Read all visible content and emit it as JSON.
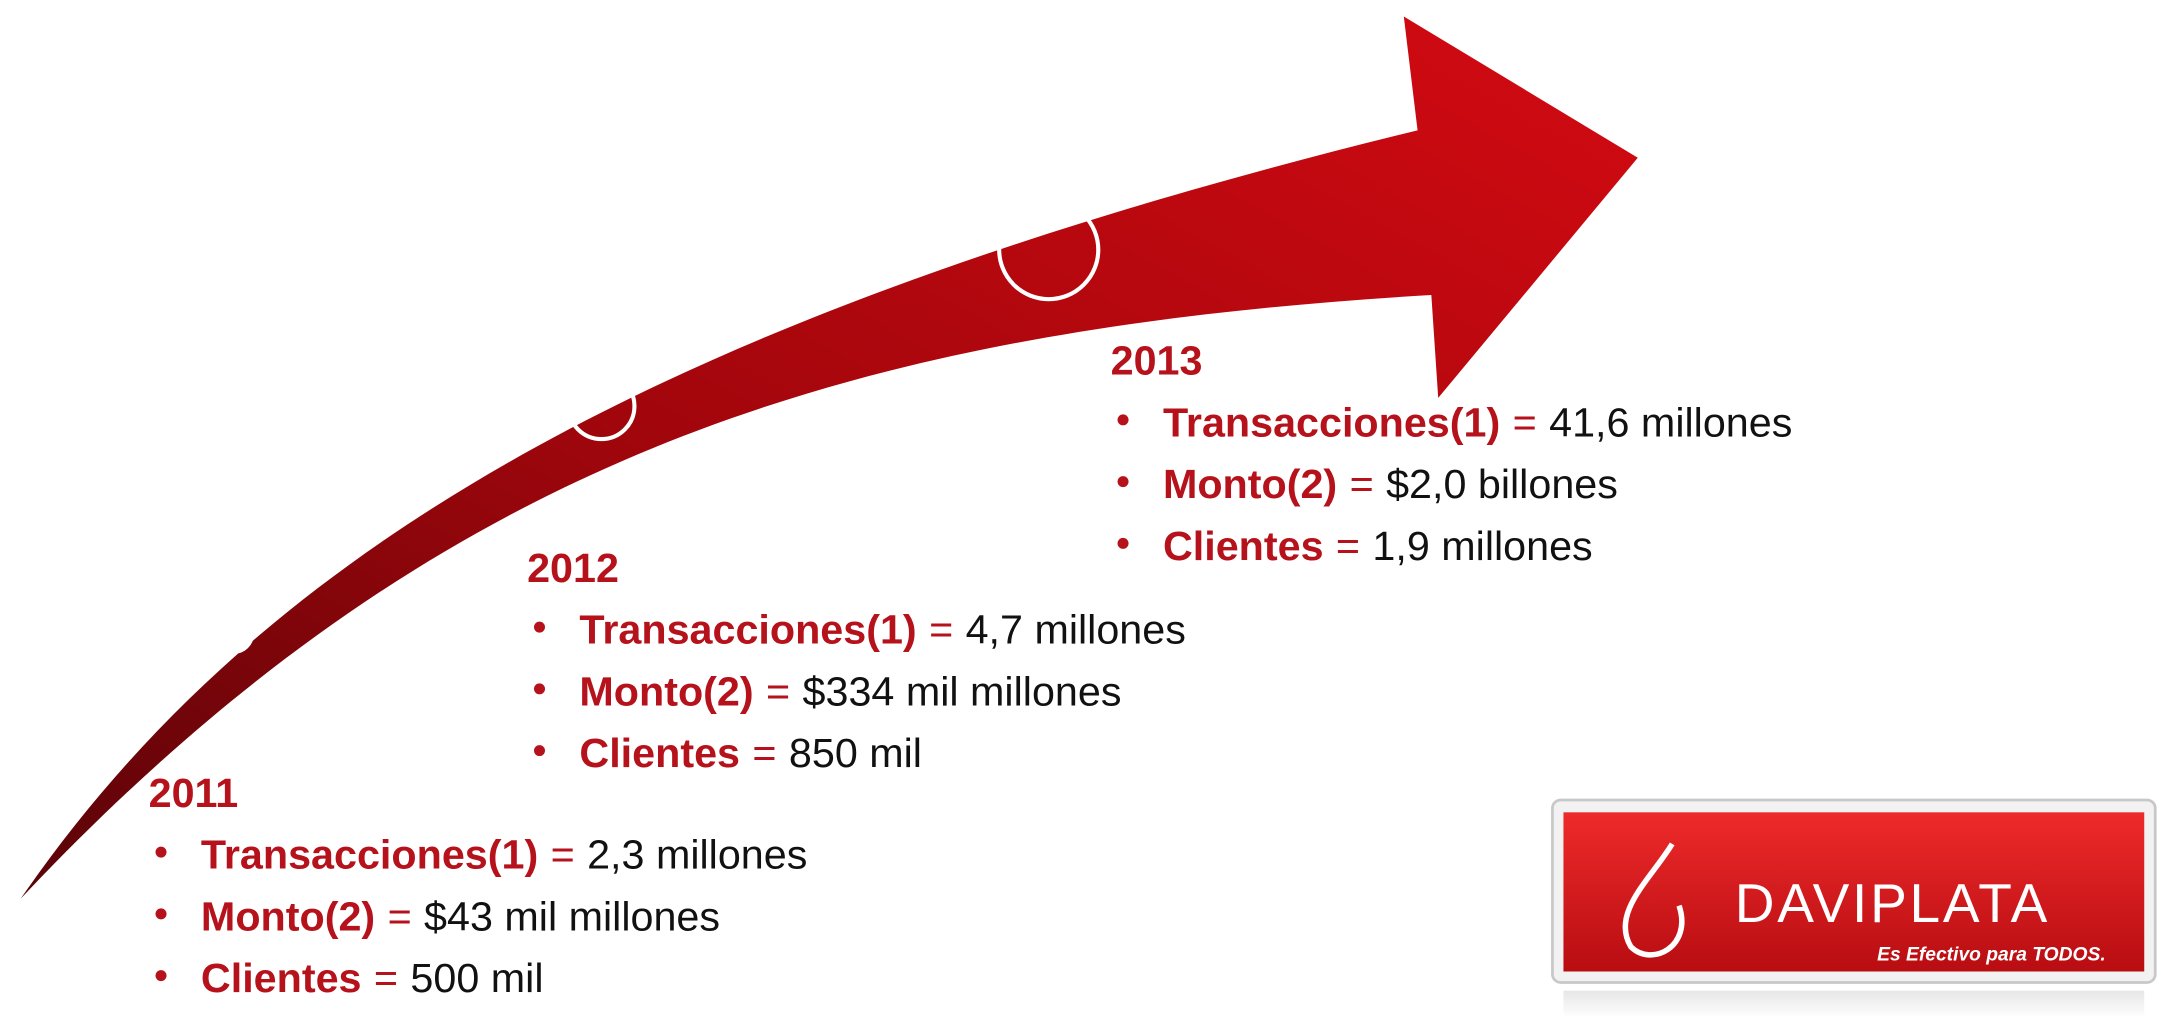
{
  "separator": "=",
  "timeline": [
    {
      "year": "2011",
      "items": [
        {
          "label": "Transacciones(1)",
          "value": "2,3 millones"
        },
        {
          "label": "Monto(2)",
          "value": "$43 mil millones"
        },
        {
          "label": "Clientes",
          "value": "500 mil"
        }
      ]
    },
    {
      "year": "2012",
      "items": [
        {
          "label": "Transacciones(1)",
          "value": "4,7 millones"
        },
        {
          "label": "Monto(2)",
          "value": "$334 mil millones"
        },
        {
          "label": "Clientes",
          "value": "850 mil"
        }
      ]
    },
    {
      "year": "2013",
      "items": [
        {
          "label": "Transacciones(1)",
          "value": "41,6 millones"
        },
        {
          "label": "Monto(2)",
          "value": "$2,0 billones"
        },
        {
          "label": "Clientes",
          "value": "1,9 millones"
        }
      ]
    }
  ],
  "logo": {
    "name": "DAVIPLATA",
    "tagline": "Es Efectivo para TODOS."
  }
}
